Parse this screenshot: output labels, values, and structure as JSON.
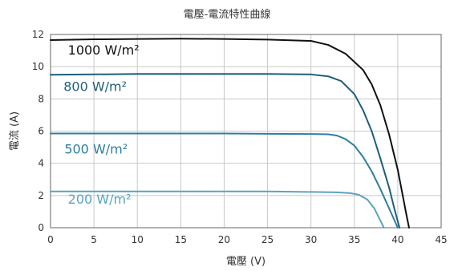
{
  "chart_data": {
    "type": "line",
    "title": "電壓-電流特性曲線",
    "xlabel": "電壓 (V)",
    "ylabel": "電流 (A)",
    "xlim": [
      0,
      45
    ],
    "ylim": [
      0,
      12
    ],
    "x_ticks": [
      0,
      5,
      10,
      15,
      20,
      25,
      30,
      35,
      40,
      45
    ],
    "y_ticks": [
      0,
      2,
      4,
      6,
      8,
      10,
      12
    ],
    "grid": true,
    "legend": "inline labels",
    "series": [
      {
        "name": "1000 W/m²",
        "color": "#111111",
        "points": [
          [
            0,
            11.65
          ],
          [
            5,
            11.7
          ],
          [
            10,
            11.72
          ],
          [
            15,
            11.74
          ],
          [
            20,
            11.72
          ],
          [
            25,
            11.68
          ],
          [
            30,
            11.6
          ],
          [
            32,
            11.35
          ],
          [
            34,
            10.8
          ],
          [
            36,
            9.8
          ],
          [
            37,
            8.9
          ],
          [
            38,
            7.6
          ],
          [
            39,
            5.8
          ],
          [
            40,
            3.6
          ],
          [
            40.5,
            2.2
          ],
          [
            41,
            0.8
          ],
          [
            41.3,
            0
          ]
        ]
      },
      {
        "name": "800 W/m²",
        "color": "#1f5e7a",
        "points": [
          [
            0,
            9.5
          ],
          [
            5,
            9.52
          ],
          [
            10,
            9.55
          ],
          [
            15,
            9.55
          ],
          [
            20,
            9.55
          ],
          [
            25,
            9.55
          ],
          [
            30,
            9.52
          ],
          [
            32,
            9.4
          ],
          [
            33.5,
            9.1
          ],
          [
            35,
            8.3
          ],
          [
            36,
            7.3
          ],
          [
            37,
            6.0
          ],
          [
            38,
            4.3
          ],
          [
            39,
            2.5
          ],
          [
            39.6,
            1.2
          ],
          [
            40.2,
            0
          ]
        ]
      },
      {
        "name": "500 W/m²",
        "color": "#2e7ea0",
        "points": [
          [
            0,
            5.85
          ],
          [
            5,
            5.85
          ],
          [
            10,
            5.85
          ],
          [
            15,
            5.85
          ],
          [
            20,
            5.85
          ],
          [
            25,
            5.83
          ],
          [
            30,
            5.82
          ],
          [
            32,
            5.8
          ],
          [
            33,
            5.72
          ],
          [
            34,
            5.5
          ],
          [
            35,
            5.1
          ],
          [
            36,
            4.4
          ],
          [
            37,
            3.5
          ],
          [
            38,
            2.4
          ],
          [
            39,
            1.2
          ],
          [
            40,
            0
          ]
        ]
      },
      {
        "name": "200 W/m²",
        "color": "#5aa3bf",
        "points": [
          [
            0,
            2.25
          ],
          [
            5,
            2.25
          ],
          [
            10,
            2.25
          ],
          [
            15,
            2.25
          ],
          [
            20,
            2.25
          ],
          [
            25,
            2.25
          ],
          [
            30,
            2.22
          ],
          [
            33,
            2.2
          ],
          [
            34.5,
            2.15
          ],
          [
            35.5,
            2.05
          ],
          [
            36.5,
            1.75
          ],
          [
            37.3,
            1.2
          ],
          [
            37.9,
            0.55
          ],
          [
            38.4,
            0
          ]
        ]
      }
    ],
    "labels": [
      {
        "text": "1000 W/m²",
        "x": 2,
        "y": 10.75,
        "color": "#111111"
      },
      {
        "text": "800 W/m²",
        "x": 1.5,
        "y": 8.5,
        "color": "#1f5e7a"
      },
      {
        "text": "500 W/m²",
        "x": 1.6,
        "y": 4.6,
        "color": "#2e7ea0"
      },
      {
        "text": "200 W/m²",
        "x": 2.0,
        "y": 1.5,
        "color": "#5aa3bf"
      }
    ]
  }
}
